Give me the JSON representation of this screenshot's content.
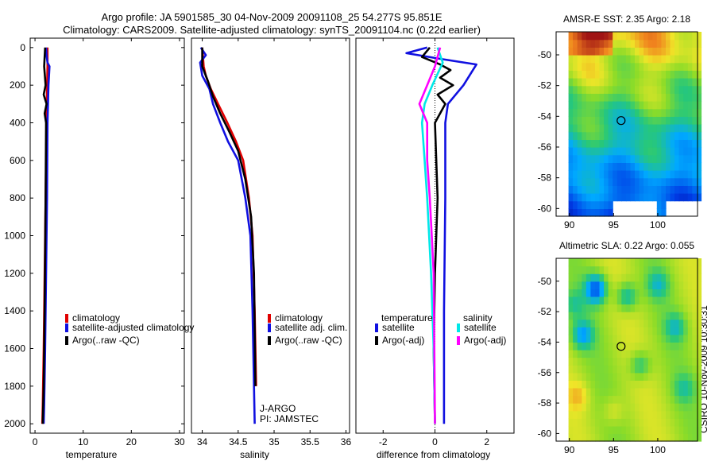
{
  "title_line1": "Argo profile: JA 5901585_30 04-Nov-2009 20091108_25 54.277S 95.851E",
  "title_line2": "Climatology: CARS2009. Satellite-adjusted climatology: synTS_20091104.nc (0.22d earlier)",
  "credit": "CSIRO 10-Nov-2009 10:30:31",
  "colors": {
    "red": "#e00000",
    "blue": "#1010e0",
    "black": "#000000",
    "cyan": "#00e8e8",
    "magenta": "#ff00ff"
  },
  "chart_data": [
    {
      "type": "line",
      "id": "temperature",
      "xlabel": "temperature",
      "ylabel": "",
      "xlim": [
        -1,
        31
      ],
      "ylim": [
        2050,
        -50
      ],
      "xticks": [
        0,
        10,
        20,
        30
      ],
      "yticks": [
        0,
        200,
        400,
        600,
        800,
        1000,
        1200,
        1400,
        1600,
        1800,
        2000
      ],
      "legend": [
        "climatology",
        "satellite-adjusted climatology",
        "Argo(..raw -QC)"
      ],
      "series": [
        {
          "name": "climatology",
          "color": "red",
          "x": [
            2.6,
            2.6,
            2.5,
            2.4,
            2.3,
            2.2,
            2.0,
            1.8,
            1.6,
            1.5
          ],
          "y": [
            0,
            100,
            200,
            400,
            600,
            800,
            1200,
            1600,
            1900,
            2000
          ]
        },
        {
          "name": "satellite-adjusted climatology",
          "color": "blue",
          "x": [
            2.3,
            2.4,
            2.6,
            3.0,
            2.8,
            2.7,
            2.6,
            2.5,
            2.3,
            2.1,
            1.9,
            1.8
          ],
          "y": [
            0,
            40,
            80,
            100,
            200,
            300,
            400,
            800,
            1200,
            1600,
            1900,
            2000
          ]
        },
        {
          "name": "Argo(..raw -QC)",
          "color": "black",
          "x": [
            2.1,
            1.9,
            2.2,
            1.8,
            2.4,
            2.0,
            2.3,
            2.2,
            2.0,
            1.8,
            1.6
          ],
          "y": [
            0,
            100,
            200,
            250,
            300,
            350,
            400,
            800,
            1400,
            1800,
            2000
          ]
        }
      ]
    },
    {
      "type": "line",
      "id": "salinity",
      "xlabel": "salinity",
      "xlim": [
        33.85,
        36.05
      ],
      "ylim": [
        2050,
        -50
      ],
      "xticks": [
        34,
        34.5,
        35,
        35.5,
        36
      ],
      "xticklabels": [
        "34",
        "34.5",
        "35",
        "35.5",
        "36"
      ],
      "legend": [
        "climatology",
        "satellite adj. clim.",
        "Argo(..raw -QC)"
      ],
      "annotation": [
        "J-ARGO",
        "PI: JAMSTEC"
      ],
      "series": [
        {
          "name": "climatology",
          "color": "red",
          "x": [
            34.0,
            34.02,
            34.05,
            34.12,
            34.22,
            34.35,
            34.47,
            34.57,
            34.65,
            34.7,
            34.73,
            34.75
          ],
          "y": [
            0,
            100,
            150,
            220,
            300,
            400,
            500,
            600,
            800,
            1000,
            1400,
            1800
          ]
        },
        {
          "name": "satellite adj. clim.",
          "color": "blue",
          "x": [
            33.98,
            34.05,
            33.97,
            34.0,
            34.1,
            34.15,
            34.25,
            34.36,
            34.5,
            34.6,
            34.67,
            34.7,
            34.72,
            34.73
          ],
          "y": [
            0,
            40,
            80,
            150,
            220,
            300,
            400,
            500,
            600,
            800,
            1000,
            1400,
            1800,
            2000
          ]
        },
        {
          "name": "Argo(..raw -QC)",
          "color": "black",
          "x": [
            34.0,
            34.0,
            34.08,
            34.15,
            34.25,
            34.38,
            34.5,
            34.6,
            34.68,
            34.72,
            34.74
          ],
          "y": [
            0,
            100,
            180,
            260,
            350,
            450,
            550,
            700,
            900,
            1200,
            1800
          ]
        }
      ]
    },
    {
      "type": "line",
      "id": "difference",
      "xlabel": "difference from climatology",
      "xlim": [
        -3.05,
        3.05
      ],
      "ylim": [
        2050,
        -50
      ],
      "xticks": [
        -2,
        0,
        2
      ],
      "legend_left_title": "temperature",
      "legend_right_title": "salinity",
      "legend_left": [
        "satellite",
        "Argo(-adj)"
      ],
      "legend_right": [
        "satellite",
        "Argo(-adj)"
      ],
      "series": [
        {
          "name": "temperature satellite",
          "color": "blue",
          "x": [
            -0.3,
            -1.1,
            0.2,
            1.6,
            1.1,
            0.5,
            0.4,
            0.4,
            0.35,
            0.35
          ],
          "y": [
            0,
            30,
            60,
            90,
            200,
            300,
            400,
            800,
            1400,
            2000
          ]
        },
        {
          "name": "temperature Argo(-adj)",
          "color": "black",
          "x": [
            -0.2,
            -0.5,
            0.2,
            0.6,
            0.2,
            0.7,
            0.1,
            0.4,
            0.0,
            0.1,
            0.0,
            -0.05,
            0.0
          ],
          "y": [
            0,
            50,
            90,
            120,
            160,
            200,
            250,
            300,
            400,
            800,
            1200,
            1600,
            2000
          ]
        },
        {
          "name": "salinity satellite",
          "color": "cyan",
          "x": [
            0.1,
            0.3,
            -0.1,
            -0.4,
            -0.5,
            -0.4,
            -0.3,
            -0.15,
            -0.05,
            0.0
          ],
          "y": [
            0,
            80,
            200,
            300,
            400,
            600,
            800,
            1200,
            1600,
            2000
          ]
        },
        {
          "name": "salinity Argo(-adj)",
          "color": "magenta",
          "x": [
            0.2,
            0.0,
            -0.3,
            -0.6,
            -0.3,
            -0.3,
            -0.2,
            -0.05,
            0.0
          ],
          "y": [
            0,
            100,
            200,
            300,
            400,
            600,
            800,
            1200,
            2000
          ]
        }
      ]
    },
    {
      "type": "heatmap",
      "id": "sst-map",
      "title": "AMSR-E SST: 2.35 Argo: 2.18",
      "xlim": [
        88.5,
        104.5
      ],
      "ylim": [
        -60.5,
        -48.5
      ],
      "xticks": [
        90,
        95,
        100
      ],
      "yticks": [
        -50,
        -52,
        -54,
        -56,
        -58,
        -60
      ],
      "marker": {
        "lon": 95.851,
        "lat": -54.277
      }
    },
    {
      "type": "heatmap",
      "id": "sla-map",
      "title": "Altimetric SLA: 0.22 Argo: 0.055",
      "xlim": [
        88.5,
        104.5
      ],
      "ylim": [
        -60.5,
        -48.5
      ],
      "xticks": [
        90,
        95,
        100
      ],
      "yticks": [
        -50,
        -52,
        -54,
        -56,
        -58,
        -60
      ],
      "marker": {
        "lon": 95.851,
        "lat": -54.277
      }
    }
  ]
}
